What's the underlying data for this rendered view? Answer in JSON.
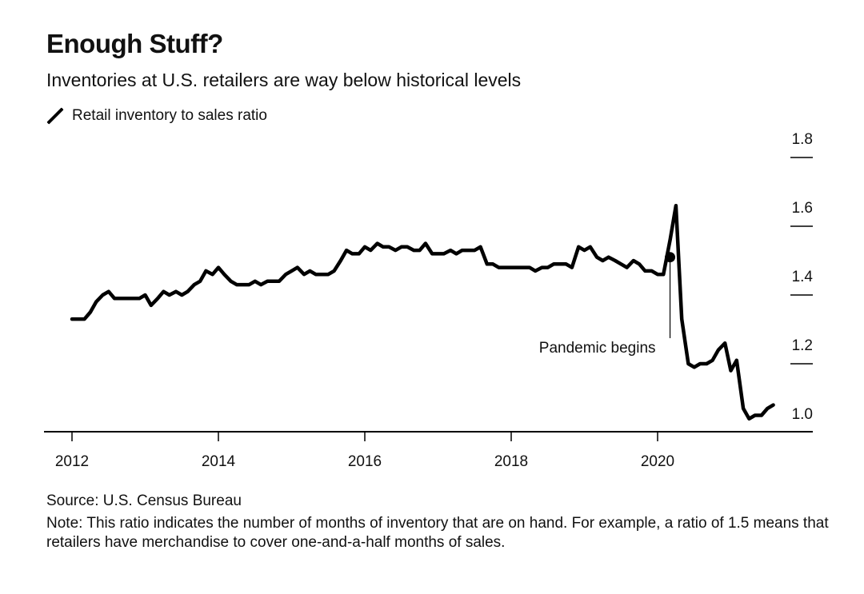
{
  "chart_data": {
    "type": "line",
    "title": "Enough Stuff?",
    "subtitle": "Inventories at U.S. retailers are way below historical levels",
    "legend": {
      "placement": "top-left",
      "entries": [
        "Retail inventory to sales ratio"
      ]
    },
    "xlabel": "",
    "ylabel": "",
    "xlim": [
      2011.75,
      2022.05
    ],
    "ylim": [
      1.0,
      1.8
    ],
    "x_ticks": [
      2012,
      2014,
      2016,
      2018,
      2020
    ],
    "x_tick_labels": [
      "2012",
      "2014",
      "2016",
      "2018",
      "2020"
    ],
    "y_ticks": [
      1.0,
      1.2,
      1.4,
      1.6,
      1.8
    ],
    "y_tick_labels": [
      "1.0",
      "1.2",
      "1.4",
      "1.6",
      "1.8"
    ],
    "y_axis_side": "right",
    "grid": false,
    "color": "#000000",
    "series": [
      {
        "name": "Retail inventory to sales ratio",
        "x": [
          2012.0,
          2012.17,
          2012.25,
          2012.33,
          2012.42,
          2012.5,
          2012.58,
          2012.67,
          2012.75,
          2012.83,
          2012.92,
          2013.0,
          2013.08,
          2013.17,
          2013.25,
          2013.33,
          2013.42,
          2013.5,
          2013.58,
          2013.67,
          2013.75,
          2013.83,
          2013.92,
          2014.0,
          2014.08,
          2014.17,
          2014.25,
          2014.33,
          2014.42,
          2014.5,
          2014.58,
          2014.67,
          2014.75,
          2014.83,
          2014.92,
          2015.0,
          2015.08,
          2015.17,
          2015.25,
          2015.33,
          2015.42,
          2015.5,
          2015.58,
          2015.67,
          2015.75,
          2015.83,
          2015.92,
          2016.0,
          2016.08,
          2016.17,
          2016.25,
          2016.33,
          2016.42,
          2016.5,
          2016.58,
          2016.67,
          2016.75,
          2016.83,
          2016.92,
          2017.0,
          2017.08,
          2017.17,
          2017.25,
          2017.33,
          2017.42,
          2017.5,
          2017.58,
          2017.67,
          2017.75,
          2017.83,
          2017.92,
          2018.0,
          2018.08,
          2018.17,
          2018.25,
          2018.33,
          2018.42,
          2018.5,
          2018.58,
          2018.67,
          2018.75,
          2018.83,
          2018.92,
          2019.0,
          2019.08,
          2019.17,
          2019.25,
          2019.33,
          2019.42,
          2019.5,
          2019.58,
          2019.67,
          2019.75,
          2019.83,
          2019.92,
          2020.0,
          2020.08,
          2020.17,
          2020.25,
          2020.33,
          2020.42,
          2020.5,
          2020.58,
          2020.67,
          2020.75,
          2020.83,
          2020.92,
          2021.0,
          2021.08,
          2021.17,
          2021.25,
          2021.33,
          2021.42,
          2021.5,
          2021.58
        ],
        "y": [
          1.33,
          1.33,
          1.35,
          1.38,
          1.4,
          1.41,
          1.39,
          1.39,
          1.39,
          1.39,
          1.39,
          1.4,
          1.37,
          1.39,
          1.41,
          1.4,
          1.41,
          1.4,
          1.41,
          1.43,
          1.44,
          1.47,
          1.46,
          1.48,
          1.46,
          1.44,
          1.43,
          1.43,
          1.43,
          1.44,
          1.43,
          1.44,
          1.44,
          1.44,
          1.46,
          1.47,
          1.48,
          1.46,
          1.47,
          1.46,
          1.46,
          1.46,
          1.47,
          1.5,
          1.53,
          1.52,
          1.52,
          1.54,
          1.53,
          1.55,
          1.54,
          1.54,
          1.53,
          1.54,
          1.54,
          1.53,
          1.53,
          1.55,
          1.52,
          1.52,
          1.52,
          1.53,
          1.52,
          1.53,
          1.53,
          1.53,
          1.54,
          1.49,
          1.49,
          1.48,
          1.48,
          1.48,
          1.48,
          1.48,
          1.48,
          1.47,
          1.48,
          1.48,
          1.49,
          1.49,
          1.49,
          1.48,
          1.54,
          1.53,
          1.54,
          1.51,
          1.5,
          1.51,
          1.5,
          1.49,
          1.48,
          1.5,
          1.49,
          1.47,
          1.47,
          1.46,
          1.46,
          1.56,
          1.66,
          1.33,
          1.2,
          1.19,
          1.2,
          1.2,
          1.21,
          1.24,
          1.26,
          1.18,
          1.21,
          1.07,
          1.04,
          1.05,
          1.05,
          1.07,
          1.08
        ]
      }
    ],
    "annotations": [
      {
        "text": "Pandemic begins",
        "x": 2020.17,
        "y": 1.51,
        "marker": "dot"
      }
    ]
  },
  "footer": {
    "source": "Source: U.S. Census Bureau",
    "note": "Note: This ratio indicates the number of months of inventory that are on hand. For example, a ratio of 1.5 means that retailers have merchandise to cover one-and-a-half months of sales."
  }
}
